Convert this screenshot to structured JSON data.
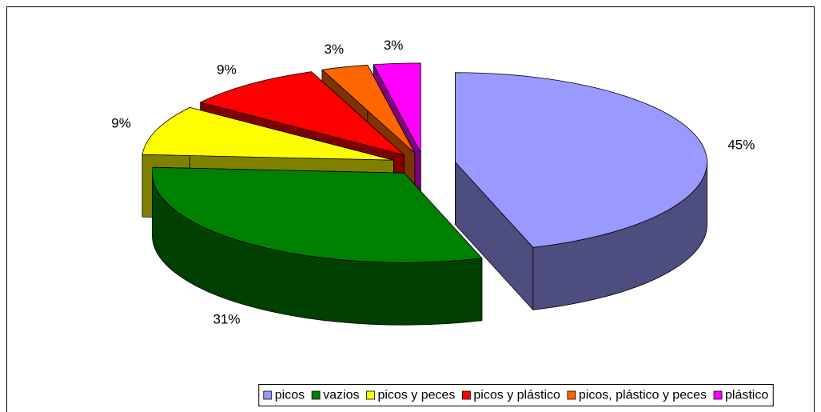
{
  "chart_data": {
    "type": "pie3d",
    "categories": [
      "picos",
      "vazios",
      "picos y peces",
      "picos y plástico",
      "picos, plástico y peces",
      "plástico"
    ],
    "values": [
      45,
      31,
      9,
      9,
      3,
      3
    ],
    "value_labels": [
      "45%",
      "31%",
      "9%",
      "9%",
      "3%",
      "3%"
    ],
    "colors": [
      "#9999ff",
      "#008000",
      "#ffff00",
      "#ff0000",
      "#ff6600",
      "#ff00ff"
    ],
    "legend": "bottom"
  }
}
